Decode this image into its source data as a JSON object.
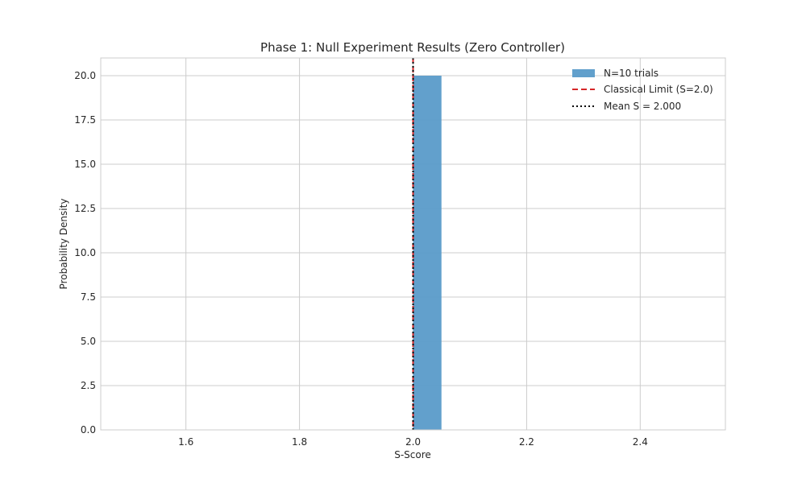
{
  "chart_data": {
    "type": "bar",
    "title": "Phase 1: Null Experiment Results (Zero Controller)",
    "xlabel": "S-Score",
    "ylabel": "Probability Density",
    "xlim": [
      1.45,
      2.55
    ],
    "ylim": [
      0,
      21
    ],
    "xticks": [
      "1.6",
      "1.8",
      "2.0",
      "2.2",
      "2.4"
    ],
    "xtick_values": [
      1.6,
      1.8,
      2.0,
      2.2,
      2.4
    ],
    "yticks": [
      "0.0",
      "2.5",
      "5.0",
      "7.5",
      "10.0",
      "12.5",
      "15.0",
      "17.5",
      "20.0"
    ],
    "ytick_values": [
      0,
      2.5,
      5.0,
      7.5,
      10.0,
      12.5,
      15.0,
      17.5,
      20.0
    ],
    "grid": true,
    "legend_position": "top-right",
    "histogram": {
      "name": "N=10 trials",
      "bins": [
        {
          "x0": 2.0,
          "x1": 2.05,
          "value": 20.0
        }
      ],
      "color": "#5a9bc9"
    },
    "reference_lines": [
      {
        "name": "Classical Limit (S=2.0)",
        "x": 2.0,
        "color": "#d62728",
        "style": "dashed"
      },
      {
        "name": "Mean S = 2.000",
        "x": 2.0,
        "color": "#000000",
        "style": "dotted"
      }
    ]
  }
}
